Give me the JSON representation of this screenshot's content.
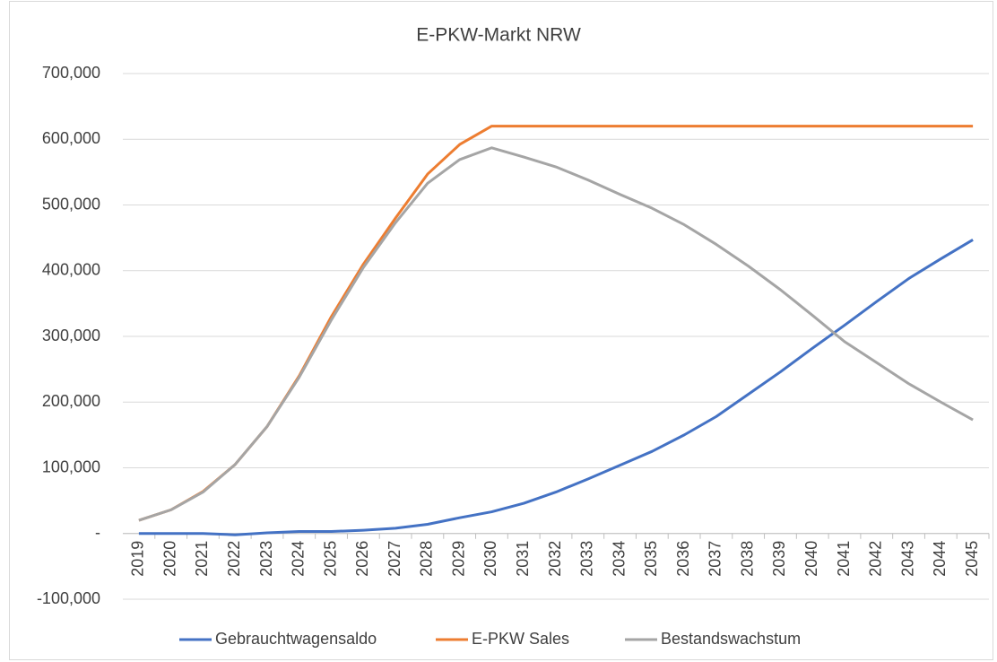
{
  "chart_data": {
    "type": "line",
    "title": "E-PKW-Markt NRW",
    "categories": [
      "2019",
      "2020",
      "2021",
      "2022",
      "2023",
      "2024",
      "2025",
      "2026",
      "2027",
      "2028",
      "2029",
      "2030",
      "2031",
      "2032",
      "2033",
      "2034",
      "2035",
      "2036",
      "2037",
      "2038",
      "2039",
      "2040",
      "2041",
      "2042",
      "2043",
      "2044",
      "2045"
    ],
    "series": [
      {
        "name": "Gebrauchtwagensaldo",
        "color": "#4472c4",
        "values": [
          0,
          0,
          0,
          -2000,
          1000,
          3000,
          3000,
          5000,
          8000,
          14000,
          24000,
          33000,
          46000,
          63000,
          83000,
          104000,
          125000,
          150000,
          178000,
          212000,
          246000,
          282000,
          317000,
          353000,
          388000,
          418000,
          447000
        ]
      },
      {
        "name": "E-PKW Sales",
        "color": "#ed7d31",
        "values": [
          20000,
          36000,
          64000,
          105000,
          163000,
          240000,
          330000,
          410000,
          480000,
          547000,
          592000,
          620000,
          620000,
          620000,
          620000,
          620000,
          620000,
          620000,
          620000,
          620000,
          620000,
          620000,
          620000,
          620000,
          620000,
          620000,
          620000
        ]
      },
      {
        "name": "Bestandswachstum",
        "color": "#a5a5a5",
        "values": [
          20000,
          36000,
          63000,
          105000,
          163000,
          238000,
          325000,
          405000,
          473000,
          533000,
          569000,
          587000,
          573000,
          558000,
          538000,
          516000,
          495000,
          470000,
          440000,
          407000,
          371000,
          332000,
          292000,
          260000,
          228000,
          200000,
          173000
        ]
      }
    ],
    "ylim": [
      -100000,
      700000
    ],
    "yticks": [
      {
        "value": -100000,
        "label": "-100,000"
      },
      {
        "value": 0,
        "label": "-"
      },
      {
        "value": 100000,
        "label": "100,000"
      },
      {
        "value": 200000,
        "label": "200,000"
      },
      {
        "value": 300000,
        "label": "300,000"
      },
      {
        "value": 400000,
        "label": "400,000"
      },
      {
        "value": 500000,
        "label": "500,000"
      },
      {
        "value": 600000,
        "label": "600,000"
      },
      {
        "value": 700000,
        "label": "700,000"
      }
    ],
    "grid": true,
    "legend": "bottom"
  }
}
